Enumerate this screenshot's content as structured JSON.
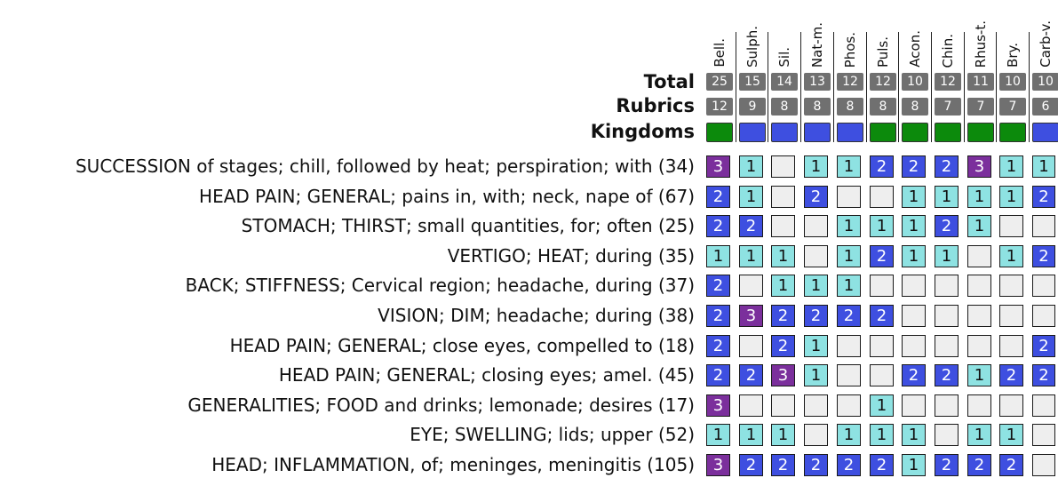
{
  "remedies": [
    "Bell.",
    "Sulph.",
    "Sil.",
    "Nat-m.",
    "Phos.",
    "Puls.",
    "Acon.",
    "Chin.",
    "Rhus-t.",
    "Bry.",
    "Carb-v."
  ],
  "labels": {
    "total": "Total",
    "rubrics": "Rubrics",
    "kingdoms": "Kingdoms"
  },
  "totals": [
    "25",
    "15",
    "14",
    "13",
    "12",
    "12",
    "10",
    "12",
    "11",
    "10",
    "10"
  ],
  "rubric_counts": [
    "12",
    "9",
    "8",
    "8",
    "8",
    "8",
    "8",
    "7",
    "7",
    "7",
    "6"
  ],
  "kingdoms": [
    "green",
    "blue",
    "blue",
    "blue",
    "blue",
    "green",
    "green",
    "green",
    "green",
    "green",
    "blue"
  ],
  "colors": {
    "kingdom_green": "#0c8a0c",
    "kingdom_blue": "#3e4fe0",
    "grade_1": "#8ee2e2",
    "grade_2": "#3e4fe0",
    "grade_3": "#7b2f9c",
    "empty": "#eeeeee",
    "count_box": "#707070"
  },
  "rows": [
    {
      "label": "SUCCESSION of stages; chill, followed by heat; perspiration; with (34)",
      "grades": [
        3,
        1,
        0,
        1,
        1,
        2,
        2,
        2,
        3,
        1,
        1
      ]
    },
    {
      "label": "HEAD PAIN; GENERAL; pains in, with; neck, nape of (67)",
      "grades": [
        2,
        1,
        0,
        2,
        0,
        0,
        1,
        1,
        1,
        1,
        2
      ]
    },
    {
      "label": "STOMACH; THIRST; small quantities, for; often (25)",
      "grades": [
        2,
        2,
        0,
        0,
        1,
        1,
        1,
        2,
        1,
        0,
        0
      ]
    },
    {
      "label": "VERTIGO; HEAT; during (35)",
      "grades": [
        1,
        1,
        1,
        0,
        1,
        2,
        1,
        1,
        0,
        1,
        2
      ]
    },
    {
      "label": "BACK; STIFFNESS; Cervical region; headache, during (37)",
      "grades": [
        2,
        0,
        1,
        1,
        1,
        0,
        0,
        0,
        0,
        0,
        0
      ]
    },
    {
      "label": "VISION; DIM; headache; during (38)",
      "grades": [
        2,
        3,
        2,
        2,
        2,
        2,
        0,
        0,
        0,
        0,
        0
      ]
    },
    {
      "label": "HEAD PAIN; GENERAL; close eyes, compelled to (18)",
      "grades": [
        2,
        0,
        2,
        1,
        0,
        0,
        0,
        0,
        0,
        0,
        2
      ]
    },
    {
      "label": "HEAD PAIN; GENERAL; closing eyes; amel. (45)",
      "grades": [
        2,
        2,
        3,
        1,
        0,
        0,
        2,
        2,
        1,
        2,
        2
      ]
    },
    {
      "label": "GENERALITIES; FOOD and drinks; lemonade; desires (17)",
      "grades": [
        3,
        0,
        0,
        0,
        0,
        1,
        0,
        0,
        0,
        0,
        0
      ]
    },
    {
      "label": "EYE; SWELLING; lids; upper (52)",
      "grades": [
        1,
        1,
        1,
        0,
        1,
        1,
        1,
        0,
        1,
        1,
        0
      ]
    },
    {
      "label": "HEAD; INFLAMMATION, of; meninges, meningitis (105)",
      "grades": [
        3,
        2,
        2,
        2,
        2,
        2,
        1,
        2,
        2,
        2,
        0
      ]
    }
  ]
}
